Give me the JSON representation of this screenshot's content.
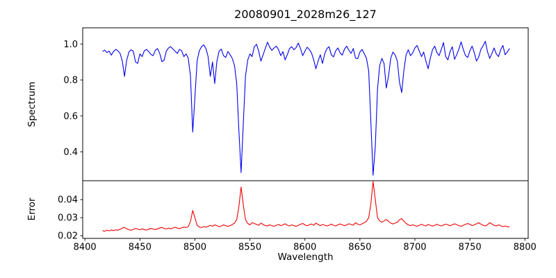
{
  "chart_data": {
    "type": "line",
    "title": "20080901_2028m26_127",
    "x_start": 8416,
    "x_step": 2,
    "axes_top": {
      "ylabel": "Spectrum",
      "xlim": [
        8398,
        8803
      ],
      "ylim": [
        0.24,
        1.09
      ],
      "yticks": [
        0.4,
        0.6,
        0.8,
        1.0
      ],
      "ytick_labels": [
        "0.4",
        "0.6",
        "0.8",
        "1.0"
      ],
      "grid": false,
      "series": {
        "name": "spectrum",
        "color": "#0000ee",
        "values": [
          0.958,
          0.966,
          0.952,
          0.96,
          0.938,
          0.958,
          0.97,
          0.962,
          0.948,
          0.905,
          0.82,
          0.91,
          0.955,
          0.968,
          0.96,
          0.9,
          0.892,
          0.945,
          0.93,
          0.962,
          0.97,
          0.958,
          0.942,
          0.935,
          0.965,
          0.975,
          0.948,
          0.902,
          0.91,
          0.96,
          0.978,
          0.985,
          0.972,
          0.96,
          0.948,
          0.97,
          0.962,
          0.93,
          0.945,
          0.92,
          0.82,
          0.51,
          0.7,
          0.905,
          0.962,
          0.985,
          0.995,
          0.975,
          0.93,
          0.82,
          0.9,
          0.78,
          0.905,
          0.96,
          0.972,
          0.935,
          0.925,
          0.958,
          0.94,
          0.92,
          0.88,
          0.78,
          0.52,
          0.285,
          0.56,
          0.82,
          0.91,
          0.945,
          0.93,
          0.985,
          0.998,
          0.96,
          0.905,
          0.94,
          0.975,
          1.01,
          0.982,
          0.965,
          0.978,
          0.988,
          0.97,
          0.935,
          0.958,
          0.912,
          0.94,
          0.975,
          0.985,
          0.968,
          0.98,
          1.005,
          0.975,
          0.935,
          0.96,
          0.982,
          0.97,
          0.95,
          0.912,
          0.862,
          0.905,
          0.94,
          0.892,
          0.945,
          0.975,
          0.985,
          0.94,
          0.928,
          0.962,
          0.978,
          0.95,
          0.938,
          0.972,
          0.988,
          0.965,
          0.948,
          0.975,
          0.922,
          0.918,
          0.955,
          0.97,
          0.945,
          0.92,
          0.85,
          0.56,
          0.27,
          0.43,
          0.75,
          0.88,
          0.92,
          0.89,
          0.755,
          0.82,
          0.92,
          0.955,
          0.94,
          0.905,
          0.788,
          0.73,
          0.855,
          0.94,
          0.968,
          0.935,
          0.95,
          0.978,
          0.992,
          0.96,
          0.93,
          0.955,
          0.905,
          0.862,
          0.92,
          0.968,
          0.988,
          0.952,
          0.935,
          0.97,
          1.008,
          0.93,
          0.912,
          0.958,
          0.985,
          0.915,
          0.94,
          0.972,
          1.012,
          0.97,
          0.935,
          0.925,
          0.962,
          0.988,
          0.952,
          0.905,
          0.928,
          0.97,
          0.99,
          1.015,
          0.958,
          0.92,
          0.948,
          0.978,
          0.945,
          0.93,
          0.968,
          0.992,
          0.94,
          0.955,
          0.975
        ]
      }
    },
    "axes_bottom": {
      "ylabel": "Error",
      "xlabel": "Wavelength",
      "xlim": [
        8398,
        8803
      ],
      "ylim": [
        0.0185,
        0.0505
      ],
      "xticks": [
        8400,
        8450,
        8500,
        8550,
        8600,
        8650,
        8700,
        8750,
        8800
      ],
      "xtick_labels": [
        "8400",
        "8450",
        "8500",
        "8550",
        "8600",
        "8650",
        "8700",
        "8750",
        "8800"
      ],
      "yticks": [
        0.02,
        0.03,
        0.04
      ],
      "ytick_labels": [
        "0.02",
        "0.03",
        "0.04"
      ],
      "grid": false,
      "series": {
        "name": "error",
        "color": "#ee0000",
        "values": [
          0.0228,
          0.0225,
          0.023,
          0.0227,
          0.0232,
          0.0228,
          0.0233,
          0.023,
          0.0236,
          0.0242,
          0.0246,
          0.0238,
          0.0233,
          0.023,
          0.0235,
          0.024,
          0.0237,
          0.0233,
          0.0238,
          0.0234,
          0.0231,
          0.0236,
          0.024,
          0.0237,
          0.0234,
          0.0238,
          0.0242,
          0.0246,
          0.024,
          0.0237,
          0.0242,
          0.0238,
          0.0243,
          0.0247,
          0.0242,
          0.0239,
          0.0244,
          0.0248,
          0.0245,
          0.025,
          0.028,
          0.034,
          0.03,
          0.0258,
          0.0248,
          0.0245,
          0.025,
          0.0247,
          0.0252,
          0.0257,
          0.0252,
          0.026,
          0.0255,
          0.025,
          0.0254,
          0.026,
          0.0255,
          0.0252,
          0.0256,
          0.0262,
          0.027,
          0.029,
          0.036,
          0.047,
          0.037,
          0.029,
          0.0268,
          0.026,
          0.0272,
          0.0268,
          0.0262,
          0.0258,
          0.027,
          0.0262,
          0.0256,
          0.0254,
          0.026,
          0.0256,
          0.0252,
          0.0258,
          0.0262,
          0.0256,
          0.026,
          0.0266,
          0.0258,
          0.0254,
          0.026,
          0.0256,
          0.0252,
          0.0258,
          0.0263,
          0.0268,
          0.026,
          0.0255,
          0.026,
          0.0265,
          0.0258,
          0.027,
          0.0262,
          0.0256,
          0.0262,
          0.0258,
          0.0254,
          0.0258,
          0.0264,
          0.0258,
          0.0254,
          0.026,
          0.0265,
          0.026,
          0.0255,
          0.026,
          0.0266,
          0.0262,
          0.0258,
          0.0272,
          0.0264,
          0.026,
          0.0266,
          0.0272,
          0.028,
          0.03,
          0.038,
          0.05,
          0.04,
          0.03,
          0.0282,
          0.0275,
          0.0282,
          0.029,
          0.028,
          0.027,
          0.0265,
          0.027,
          0.0275,
          0.0288,
          0.0295,
          0.028,
          0.0268,
          0.026,
          0.0256,
          0.026,
          0.0256,
          0.0252,
          0.0258,
          0.0263,
          0.0258,
          0.0254,
          0.0262,
          0.0258,
          0.0253,
          0.0258,
          0.0263,
          0.0258,
          0.0254,
          0.0259,
          0.0264,
          0.026,
          0.0255,
          0.026,
          0.0266,
          0.0261,
          0.0256,
          0.0252,
          0.0258,
          0.0263,
          0.0268,
          0.0262,
          0.0256,
          0.026,
          0.0266,
          0.0272,
          0.0264,
          0.0258,
          0.0254,
          0.026,
          0.0272,
          0.0265,
          0.0258,
          0.0254,
          0.026,
          0.0255,
          0.025,
          0.0254,
          0.025,
          0.0248
        ]
      }
    }
  }
}
